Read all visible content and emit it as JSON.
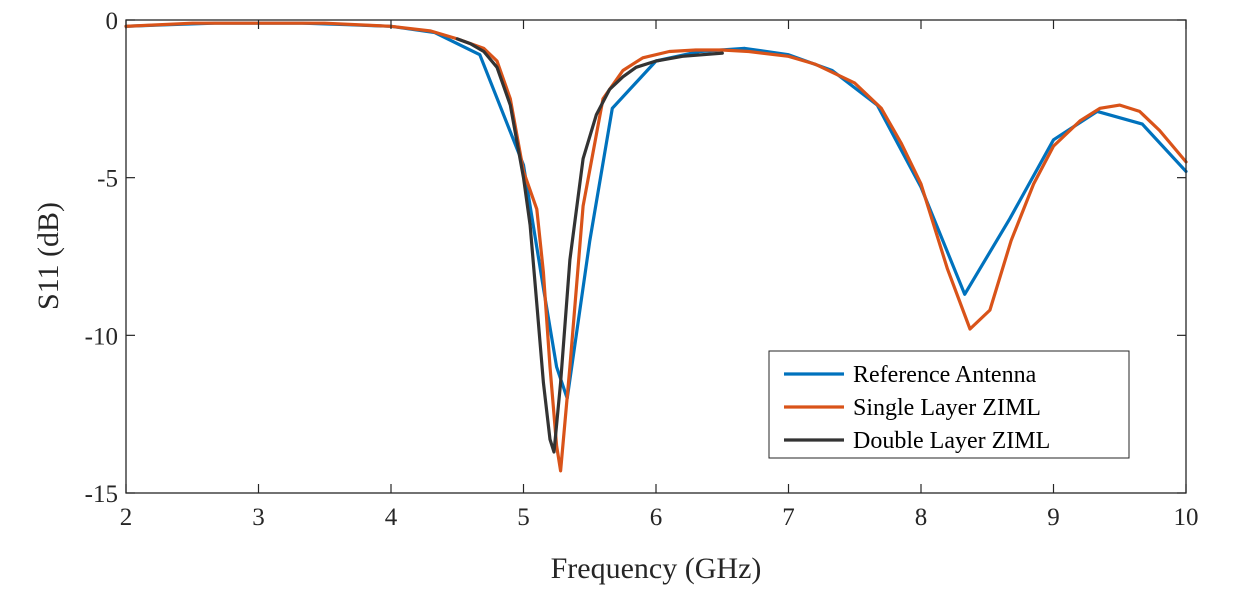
{
  "chart_data": {
    "type": "line",
    "title": "",
    "xlabel": "Frequency (GHz)",
    "ylabel": "S11 (dB)",
    "xlim": [
      2,
      10
    ],
    "ylim": [
      -15,
      0
    ],
    "xticks": [
      2,
      3,
      4,
      5,
      6,
      7,
      8,
      9,
      10
    ],
    "yticks": [
      0,
      -5,
      -10,
      -15
    ],
    "xtick_labels": [
      "2",
      "3",
      "4",
      "5",
      "6",
      "7",
      "8",
      "9",
      "10"
    ],
    "ytick_labels": [
      "0",
      "-5",
      "-10",
      "-15"
    ],
    "grid": false,
    "legend_position": "lower-right",
    "series": [
      {
        "name": "Reference Antenna",
        "color": "#0072BD",
        "x": [
          2.0,
          2.33,
          2.67,
          3.0,
          3.33,
          3.67,
          4.0,
          4.33,
          4.67,
          5.0,
          5.15,
          5.25,
          5.33,
          5.5,
          5.67,
          6.0,
          6.33,
          6.67,
          7.0,
          7.33,
          7.67,
          8.0,
          8.33,
          8.67,
          9.0,
          9.33,
          9.67,
          10.0
        ],
        "values": [
          -0.2,
          -0.15,
          -0.1,
          -0.1,
          -0.1,
          -0.15,
          -0.2,
          -0.4,
          -1.1,
          -4.6,
          -8.5,
          -11.0,
          -12.0,
          -7.0,
          -2.8,
          -1.3,
          -1.0,
          -0.9,
          -1.1,
          -1.6,
          -2.7,
          -5.3,
          -8.7,
          -6.3,
          -3.8,
          -2.9,
          -3.3,
          -4.8
        ]
      },
      {
        "name": "Single Layer ZIML",
        "color": "#D95319",
        "x": [
          2.0,
          2.5,
          3.0,
          3.5,
          4.0,
          4.3,
          4.5,
          4.7,
          4.8,
          4.9,
          5.0,
          5.1,
          5.15,
          5.2,
          5.25,
          5.28,
          5.35,
          5.45,
          5.6,
          5.75,
          5.9,
          6.1,
          6.3,
          6.5,
          6.7,
          7.0,
          7.2,
          7.5,
          7.7,
          7.85,
          8.0,
          8.2,
          8.37,
          8.52,
          8.68,
          8.85,
          9.0,
          9.2,
          9.35,
          9.5,
          9.65,
          9.8,
          10.0
        ],
        "values": [
          -0.2,
          -0.1,
          -0.1,
          -0.1,
          -0.2,
          -0.35,
          -0.6,
          -0.9,
          -1.3,
          -2.5,
          -4.8,
          -6.0,
          -8.0,
          -11.0,
          -13.5,
          -14.3,
          -11.0,
          -5.9,
          -2.5,
          -1.6,
          -1.2,
          -1.0,
          -0.95,
          -0.95,
          -1.0,
          -1.15,
          -1.4,
          -2.0,
          -2.8,
          -3.9,
          -5.2,
          -7.9,
          -9.8,
          -9.2,
          -7.0,
          -5.2,
          -4.0,
          -3.2,
          -2.8,
          -2.7,
          -2.9,
          -3.5,
          -4.5
        ]
      },
      {
        "name": "Double Layer ZIML",
        "color": "#333333",
        "x": [
          4.5,
          4.6,
          4.7,
          4.8,
          4.9,
          5.0,
          5.05,
          5.1,
          5.15,
          5.2,
          5.23,
          5.28,
          5.35,
          5.45,
          5.55,
          5.65,
          5.75,
          5.85,
          6.0,
          6.2,
          6.5
        ],
        "values": [
          -0.6,
          -0.75,
          -1.0,
          -1.5,
          -2.7,
          -5.0,
          -6.5,
          -9.0,
          -11.5,
          -13.3,
          -13.7,
          -11.5,
          -7.6,
          -4.4,
          -3.0,
          -2.2,
          -1.8,
          -1.5,
          -1.3,
          -1.15,
          -1.05
        ]
      }
    ]
  }
}
